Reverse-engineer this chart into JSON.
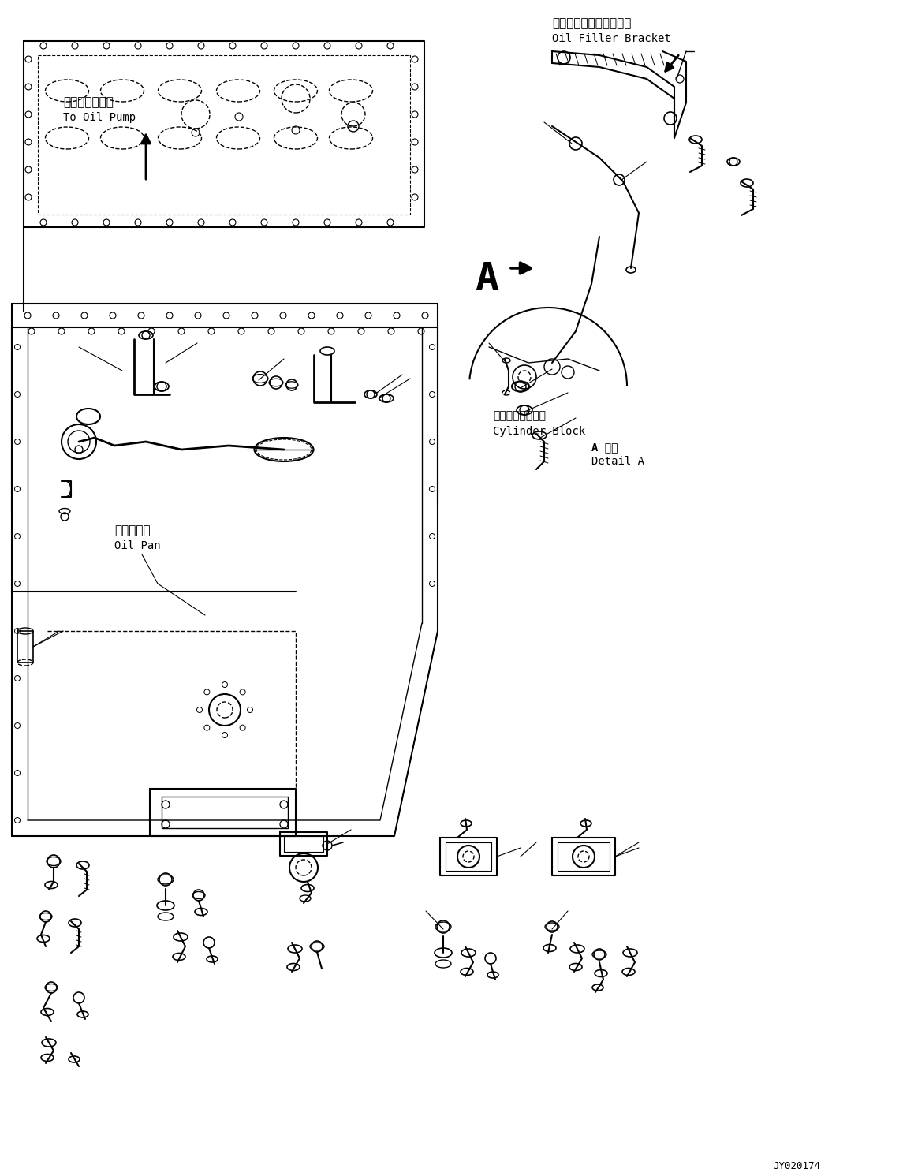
{
  "background_color": "#ffffff",
  "line_color": "#000000",
  "text_color": "#000000",
  "labels": {
    "oil_filler_bracket_jp": "オイルフィラブラケット",
    "oil_filler_bracket_en": "Oil Filler Bracket",
    "to_oil_pump_jp": "オイルポンプへ",
    "to_oil_pump_en": "To Oil Pump",
    "oil_pan_jp": "オイルパン",
    "oil_pan_en": "Oil Pan",
    "cylinder_block_jp": "シリンダブロック",
    "cylinder_block_en": "Cylinder Block",
    "detail_a_jp": "A 詳細",
    "detail_a_en": "Detail A",
    "part_number": "JY020174"
  },
  "figsize": [
    11.45,
    14.91
  ],
  "dpi": 100
}
